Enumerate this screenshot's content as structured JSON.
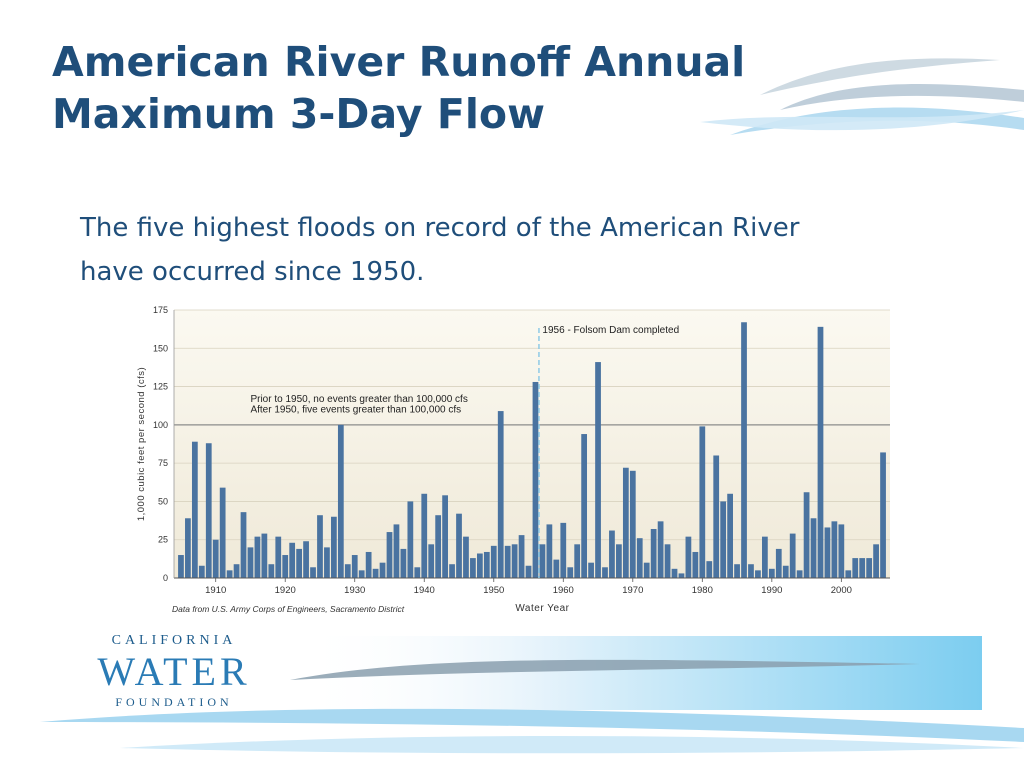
{
  "slide": {
    "title_line1": "American River Runoff Annual",
    "title_line2": "Maximum 3-Day Flow",
    "body_line1": "The five highest floods on record of the American River",
    "body_line2": "have occurred since 1950."
  },
  "logo": {
    "top": "CALIFORNIA",
    "middle": "WATER",
    "bottom": "FOUNDATION"
  },
  "colors": {
    "title": "#1f4e7a",
    "bar": "#4a73a0",
    "plot_bg_top": "#fbf9f1",
    "plot_bg_bottom": "#efe9d8",
    "marker_line": "#8ecae6"
  },
  "chart_data": {
    "type": "bar",
    "ylabel": "1,000 cubic feet per second (cfs)",
    "xlabel": "Water Year",
    "source_note": "Data from U.S. Army Corps of Engineers, Sacramento District",
    "ylim": [
      0,
      175
    ],
    "yticks": [
      0,
      25,
      50,
      75,
      100,
      125,
      150,
      175
    ],
    "xrange": [
      1904,
      2007
    ],
    "xticks": [
      1910,
      1920,
      1930,
      1940,
      1950,
      1960,
      1970,
      1980,
      1990,
      2000
    ],
    "grid": true,
    "reference_line_y": 100,
    "annotations": [
      {
        "text": "Prior to 1950, no events greater than 100,000 cfs",
        "x": 1915,
        "y": 115
      },
      {
        "text": "After 1950, five events greater than 100,000 cfs",
        "x": 1915,
        "y": 108
      },
      {
        "text": "1956 - Folsom Dam completed",
        "x": 1957,
        "y": 160
      }
    ],
    "marker": {
      "x": 1956.5,
      "label_ref": "1956 - Folsom Dam completed"
    },
    "x": [
      1905,
      1906,
      1907,
      1908,
      1909,
      1910,
      1911,
      1912,
      1913,
      1914,
      1915,
      1916,
      1917,
      1918,
      1919,
      1920,
      1921,
      1922,
      1923,
      1924,
      1925,
      1926,
      1927,
      1928,
      1929,
      1930,
      1931,
      1932,
      1933,
      1934,
      1935,
      1936,
      1937,
      1938,
      1939,
      1940,
      1941,
      1942,
      1943,
      1944,
      1945,
      1946,
      1947,
      1948,
      1949,
      1950,
      1951,
      1952,
      1953,
      1954,
      1955,
      1956,
      1957,
      1958,
      1959,
      1960,
      1961,
      1962,
      1963,
      1964,
      1965,
      1966,
      1967,
      1968,
      1969,
      1970,
      1971,
      1972,
      1973,
      1974,
      1975,
      1976,
      1977,
      1978,
      1979,
      1980,
      1981,
      1982,
      1983,
      1984,
      1985,
      1986,
      1987,
      1988,
      1989,
      1990,
      1991,
      1992,
      1993,
      1994,
      1995,
      1996,
      1997,
      1998,
      1999,
      2000,
      2001,
      2002,
      2003,
      2004,
      2005,
      2006
    ],
    "values": [
      15,
      39,
      89,
      8,
      88,
      25,
      59,
      5,
      9,
      43,
      20,
      27,
      29,
      9,
      27,
      15,
      23,
      19,
      24,
      7,
      41,
      20,
      40,
      100,
      9,
      15,
      5,
      17,
      6,
      10,
      30,
      35,
      19,
      50,
      7,
      55,
      22,
      41,
      54,
      9,
      42,
      27,
      13,
      16,
      17,
      21,
      109,
      21,
      22,
      28,
      8,
      128,
      22,
      35,
      12,
      36,
      7,
      22,
      94,
      10,
      141,
      7,
      31,
      22,
      72,
      70,
      26,
      10,
      32,
      37,
      22,
      6,
      3,
      27,
      17,
      99,
      11,
      80,
      50,
      55,
      9,
      167,
      9,
      5,
      27,
      6,
      19,
      8,
      29,
      5,
      56,
      39,
      164,
      33,
      37,
      35,
      5,
      13,
      13,
      13,
      22,
      82
    ]
  }
}
